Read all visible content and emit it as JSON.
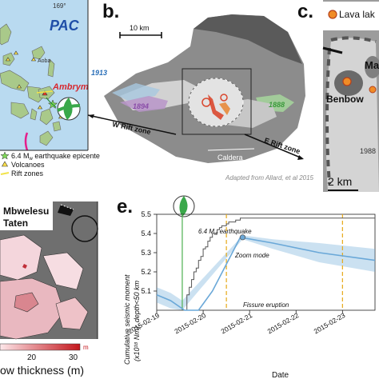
{
  "panels": {
    "b": {
      "label": "b.",
      "scale_label": "10 km",
      "caldera_label": "Caldera",
      "w_rift_label": "W Rift zone",
      "e_rift_label": "E Rift zone",
      "year_1913": "1913",
      "year_1894": "1894",
      "year_1888": "1888",
      "credit": "Adapted from Allard, et al 2015"
    },
    "c": {
      "label": "c.",
      "legend_label": "Lava lak",
      "site_ma": "Ma",
      "site_benbow": "Benbow",
      "year_1988": "1988",
      "scale_label": "2 km"
    },
    "a": {
      "region_label": "PAC",
      "site_aoba": "Aoba",
      "site_ambrym": "Ambrym",
      "lat_tick": "169°",
      "legend": [
        {
          "symbol": "star",
          "label": "6.4 M"
        },
        {
          "symbol": "triangle",
          "label": "Volcanoes"
        },
        {
          "symbol": "line",
          "label": "Rift zones"
        }
      ],
      "legend_sub": "w",
      "legend_suffix": " earthquake epicenter"
    },
    "d": {
      "site_mbwelesu": "Mbwelesu",
      "site_taten": "Taten",
      "colorbar_ticks": [
        "20",
        "30"
      ],
      "colorbar_unit": "m",
      "colorbar_label": "ow thickness (m)"
    },
    "e": {
      "label": "e.",
      "quake_prefix": "6.4 M",
      "quake_sub": "w",
      "quake_suffix": " earthquake",
      "ylabel": "Cumulative seismic moment",
      "ylabel2": "(x10¹⁸ Nm), depth<50 km",
      "xlabel": "Date",
      "annotation_zoom": "Zoom mode",
      "annotation_fissure": "Fissure eruption"
    }
  },
  "chart_data": {
    "type": "line",
    "xlabel": "Date",
    "ylabel": "Cumulative seismic moment (x10¹⁸ Nm), depth<50 km",
    "x_ticks": [
      "2015-02-19",
      "2015-02-20",
      "2015-02-21",
      "2015-02-22",
      "2015-02-23"
    ],
    "y_ticks": [
      "5.1",
      "5.2",
      "5.3",
      "5.4",
      "5.5"
    ],
    "ylim": [
      5.0,
      5.5
    ],
    "xlim": [
      0,
      4.7
    ],
    "grid": false,
    "vlines": [
      {
        "x": 0.55,
        "style": "solid",
        "color": "#4caf50"
      },
      {
        "x": 1.5,
        "style": "dashed",
        "color": "#e6a817"
      },
      {
        "x": 4.0,
        "style": "dashed",
        "color": "#e6a817"
      }
    ],
    "series": [
      {
        "style": "step",
        "color": "#555555",
        "x": [
          0,
          0.6,
          0.65,
          0.7,
          0.75,
          0.8,
          0.85,
          0.9,
          0.95,
          1.0,
          1.05,
          1.1,
          1.15,
          1.2,
          1.3,
          1.35,
          1.4,
          1.5,
          1.55,
          1.7,
          1.8,
          2.3,
          4.7
        ],
        "y": [
          5.0,
          5.0,
          5.08,
          5.12,
          5.16,
          5.2,
          5.22,
          5.26,
          5.28,
          5.32,
          5.33,
          5.36,
          5.38,
          5.4,
          5.42,
          5.43,
          5.44,
          5.45,
          5.46,
          5.47,
          5.48,
          5.48,
          5.48
        ]
      },
      {
        "style": "line",
        "color": "#6aa8d8",
        "x": [
          0,
          0.3,
          0.6,
          0.9,
          1.2,
          1.5,
          1.8,
          2.5,
          3.5,
          4.7
        ],
        "y": [
          5.08,
          5.05,
          5.0,
          5.0,
          5.1,
          5.24,
          5.38,
          5.35,
          5.3,
          5.26
        ]
      }
    ],
    "bands": [
      {
        "color": "#6aa8d8",
        "x": [
          0,
          0.3,
          0.55,
          1.85,
          2.5,
          3.5,
          4.7
        ],
        "low": [
          5.04,
          5.01,
          5.0,
          5.37,
          5.32,
          5.25,
          5.2
        ],
        "high": [
          5.12,
          5.09,
          5.05,
          5.39,
          5.37,
          5.35,
          5.32
        ]
      }
    ],
    "points": [
      {
        "x": 1.85,
        "y": 5.38,
        "color": "#6aa8d8"
      }
    ]
  }
}
